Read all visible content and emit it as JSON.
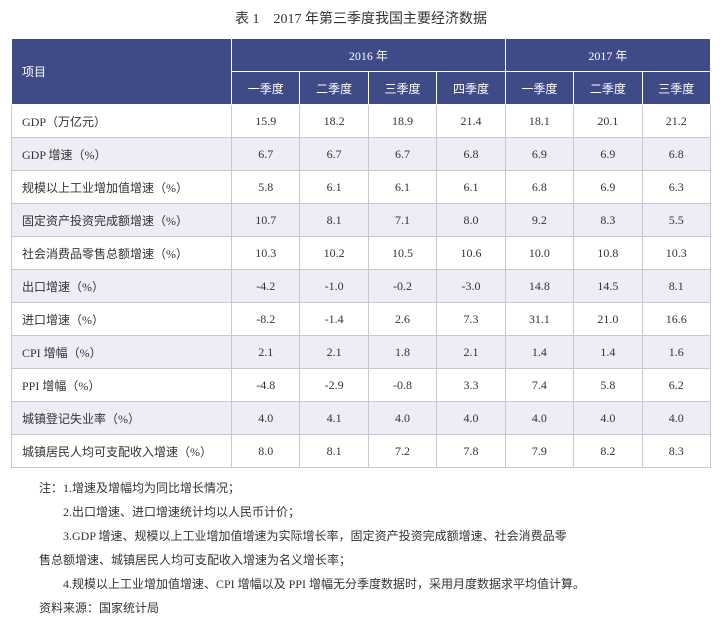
{
  "title": "表 1 2017 年第三季度我国主要经济数据",
  "header": {
    "item_label": "项目",
    "year_groups": [
      {
        "label": "2016 年",
        "span": 4
      },
      {
        "label": "2017 年",
        "span": 3
      }
    ],
    "quarters": [
      "一季度",
      "二季度",
      "三季度",
      "四季度",
      "一季度",
      "二季度",
      "三季度"
    ]
  },
  "rows": [
    {
      "label": "GDP（万亿元）",
      "values": [
        "15.9",
        "18.2",
        "18.9",
        "21.4",
        "18.1",
        "20.1",
        "21.2"
      ]
    },
    {
      "label": "GDP 增速（%）",
      "values": [
        "6.7",
        "6.7",
        "6.7",
        "6.8",
        "6.9",
        "6.9",
        "6.8"
      ]
    },
    {
      "label": "规模以上工业增加值增速（%）",
      "values": [
        "5.8",
        "6.1",
        "6.1",
        "6.1",
        "6.8",
        "6.9",
        "6.3"
      ]
    },
    {
      "label": "固定资产投资完成额增速（%）",
      "values": [
        "10.7",
        "8.1",
        "7.1",
        "8.0",
        "9.2",
        "8.3",
        "5.5"
      ]
    },
    {
      "label": "社会消费品零售总额增速（%）",
      "values": [
        "10.3",
        "10.2",
        "10.5",
        "10.6",
        "10.0",
        "10.8",
        "10.3"
      ]
    },
    {
      "label": "出口增速（%）",
      "values": [
        "-4.2",
        "-1.0",
        "-0.2",
        "-3.0",
        "14.8",
        "14.5",
        "8.1"
      ]
    },
    {
      "label": "进口增速（%）",
      "values": [
        "-8.2",
        "-1.4",
        "2.6",
        "7.3",
        "31.1",
        "21.0",
        "16.6"
      ]
    },
    {
      "label": "CPI 增幅（%）",
      "values": [
        "2.1",
        "2.1",
        "1.8",
        "2.1",
        "1.4",
        "1.4",
        "1.6"
      ]
    },
    {
      "label": "PPI 增幅（%）",
      "values": [
        "-4.8",
        "-2.9",
        "-0.8",
        "3.3",
        "7.4",
        "5.8",
        "6.2"
      ]
    },
    {
      "label": "城镇登记失业率（%）",
      "values": [
        "4.0",
        "4.1",
        "4.0",
        "4.0",
        "4.0",
        "4.0",
        "4.0"
      ]
    },
    {
      "label": "城镇居民人均可支配收入增速（%）",
      "values": [
        "8.0",
        "8.1",
        "7.2",
        "7.8",
        "7.9",
        "8.2",
        "8.3"
      ]
    }
  ],
  "notes": [
    "注：1.增速及增幅均为同比增长情况；",
    "2.出口增速、进口增速统计均以人民币计价；",
    "3.GDP 增速、规模以上工业增加值增速为实际增长率，固定资产投资完成额增速、社会消费品零",
    "售总额增速、城镇居民人均可支配收入增速为名义增长率；",
    "4.规模以上工业增加值增速、CPI 增幅以及 PPI 增幅无分季度数据时，采用月度数据求平均值计算。",
    "资料来源：国家统计局"
  ],
  "colors": {
    "header_bg": "#3f4b87",
    "header_text": "#ffffff",
    "row_alt_bg": "#ecedf5",
    "border": "#c8c8d0"
  }
}
